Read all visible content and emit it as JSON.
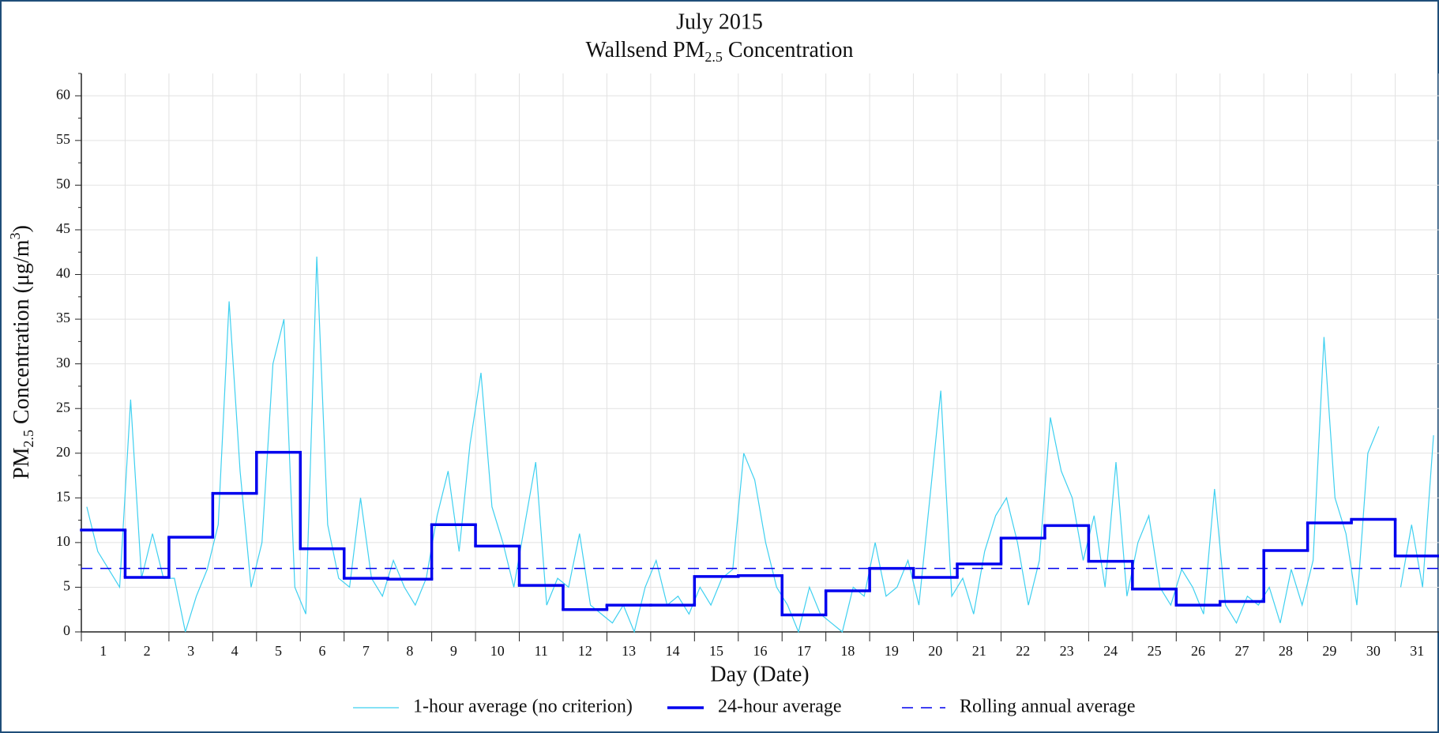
{
  "chart_data": {
    "type": "line",
    "title": "July 2015",
    "subtitle_parts": [
      "Wallsend PM",
      "2.5",
      " Concentration"
    ],
    "ylabel_parts": [
      "PM",
      "2.5",
      " Concentration (μg/m",
      "3",
      ")"
    ],
    "xlabel": "Day (Date)",
    "categories": [
      "1",
      "2",
      "3",
      "4",
      "5",
      "6",
      "7",
      "8",
      "9",
      "10",
      "11",
      "12",
      "13",
      "14",
      "15",
      "16",
      "17",
      "18",
      "19",
      "20",
      "21",
      "22",
      "23",
      "24",
      "25",
      "26",
      "27",
      "28",
      "29",
      "30",
      "31"
    ],
    "xlim": [
      0,
      31
    ],
    "ylim": [
      0,
      62.5
    ],
    "yticks": [
      0,
      5,
      10,
      15,
      20,
      25,
      30,
      35,
      40,
      45,
      50,
      55,
      60
    ],
    "grid": true,
    "series": [
      {
        "name": "1-hour average (no criterion)",
        "color": "#3fd0f0",
        "x": [
          0.125,
          0.375,
          0.625,
          0.875,
          1.125,
          1.375,
          1.625,
          1.875,
          2.125,
          2.375,
          2.625,
          2.875,
          3.125,
          3.375,
          3.625,
          3.875,
          4.125,
          4.375,
          4.625,
          4.875,
          5.125,
          5.375,
          5.625,
          5.875,
          6.125,
          6.375,
          6.625,
          6.875,
          7.125,
          7.375,
          7.625,
          7.875,
          8.125,
          8.375,
          8.625,
          8.875,
          9.125,
          9.375,
          9.625,
          9.875,
          10.125,
          10.375,
          10.625,
          10.875,
          11.125,
          11.375,
          11.625,
          11.875,
          12.125,
          12.375,
          12.625,
          12.875,
          13.125,
          13.375,
          13.625,
          13.875,
          14.125,
          14.375,
          14.625,
          14.875,
          15.125,
          15.375,
          15.625,
          15.875,
          16.125,
          16.375,
          16.625,
          16.875,
          17.125,
          17.375,
          17.625,
          17.875,
          18.125,
          18.375,
          18.625,
          18.875,
          19.125,
          19.375,
          19.625,
          19.875,
          20.125,
          20.375,
          20.625,
          20.875,
          21.125,
          21.375,
          21.625,
          21.875,
          22.125,
          22.375,
          22.625,
          22.875,
          23.125,
          23.375,
          23.625,
          23.875,
          24.125,
          24.375,
          24.625,
          24.875,
          25.125,
          25.375,
          25.625,
          25.875,
          26.125,
          26.375,
          26.625,
          26.875,
          27.125,
          27.375,
          27.625,
          27.875,
          28.125,
          28.375,
          28.625,
          28.875,
          29.125,
          29.375,
          29.625,
          29.875,
          30.125,
          30.375,
          30.625,
          30.875
        ],
        "values": [
          14,
          9,
          7,
          5,
          26,
          6,
          11,
          6,
          6,
          0,
          4,
          7,
          12,
          37,
          18,
          5,
          10,
          30,
          35,
          5,
          2,
          42,
          12,
          6,
          5,
          15,
          6,
          4,
          8,
          5,
          3,
          6,
          13,
          18,
          9,
          21,
          29,
          14,
          10,
          5,
          12,
          19,
          3,
          6,
          5,
          11,
          3,
          2,
          1,
          3,
          0,
          5,
          8,
          3,
          4,
          2,
          5,
          3,
          6,
          7,
          20,
          17,
          10,
          5,
          3,
          0,
          5,
          2,
          1,
          0,
          5,
          4,
          10,
          4,
          5,
          8,
          3,
          15,
          27,
          4,
          6,
          2,
          9,
          13,
          15,
          10,
          3,
          8,
          24,
          18,
          15,
          8,
          13,
          5,
          19,
          4,
          10,
          13,
          5,
          3,
          7,
          5,
          2,
          16,
          3,
          1,
          4,
          3,
          5,
          1,
          7,
          3,
          8,
          33,
          15,
          11,
          3,
          20,
          23,
          null,
          5,
          12,
          5,
          22
        ]
      },
      {
        "name": "24-hour average",
        "color": "#0000ee",
        "values": [
          11.4,
          6.1,
          10.6,
          15.5,
          20.1,
          9.3,
          6.0,
          5.9,
          12.0,
          9.6,
          5.2,
          2.5,
          3.0,
          3.0,
          6.2,
          6.3,
          1.9,
          4.6,
          7.1,
          6.1,
          7.6,
          10.5,
          11.9,
          7.9,
          4.8,
          3.0,
          3.4,
          9.1,
          12.2,
          12.6,
          8.5
        ]
      },
      {
        "name": "Rolling annual average",
        "color": "#0000ee",
        "value": 7.1
      }
    ]
  }
}
